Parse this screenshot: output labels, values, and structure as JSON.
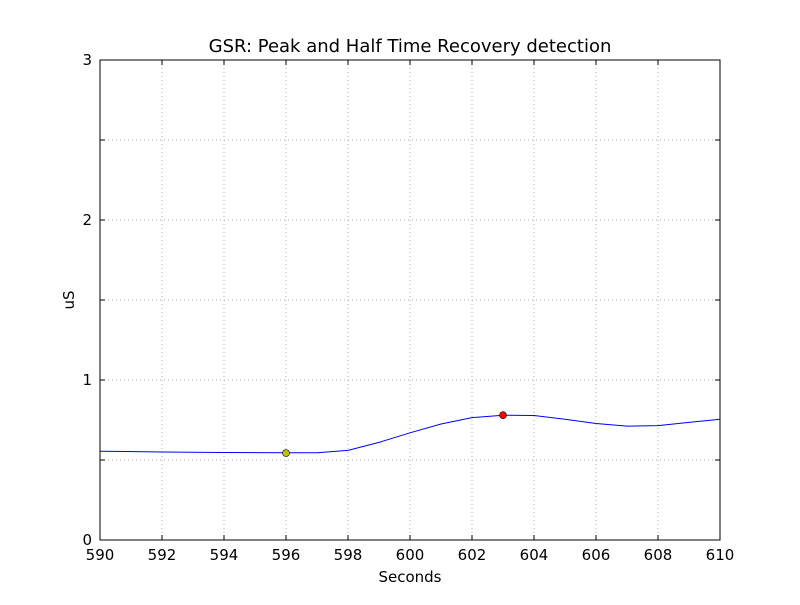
{
  "chart_data": {
    "type": "line",
    "title": "GSR: Peak and Half Time Recovery detection",
    "xlabel": "Seconds",
    "ylabel": "uS",
    "xlim": [
      590,
      610
    ],
    "ylim": [
      0,
      3
    ],
    "xticks": [
      "590",
      "592",
      "594",
      "596",
      "598",
      "600",
      "602",
      "604",
      "606",
      "608",
      "610"
    ],
    "yticks": [
      "0",
      "1",
      "2",
      "3"
    ],
    "grid": true,
    "series": [
      {
        "color": "#0000ff",
        "x": [
          590,
          592,
          594,
          596,
          597,
          598,
          599,
          600,
          601,
          602,
          603,
          604,
          605,
          606,
          607,
          608,
          609,
          610
        ],
        "y": [
          0.555,
          0.55,
          0.547,
          0.545,
          0.545,
          0.56,
          0.61,
          0.67,
          0.725,
          0.765,
          0.78,
          0.778,
          0.755,
          0.728,
          0.712,
          0.715,
          0.735,
          0.755
        ]
      }
    ],
    "markers": [
      {
        "x": 596,
        "y": 0.543,
        "color": "#bfbf00"
      },
      {
        "x": 603,
        "y": 0.78,
        "color": "#ff0000"
      }
    ]
  }
}
